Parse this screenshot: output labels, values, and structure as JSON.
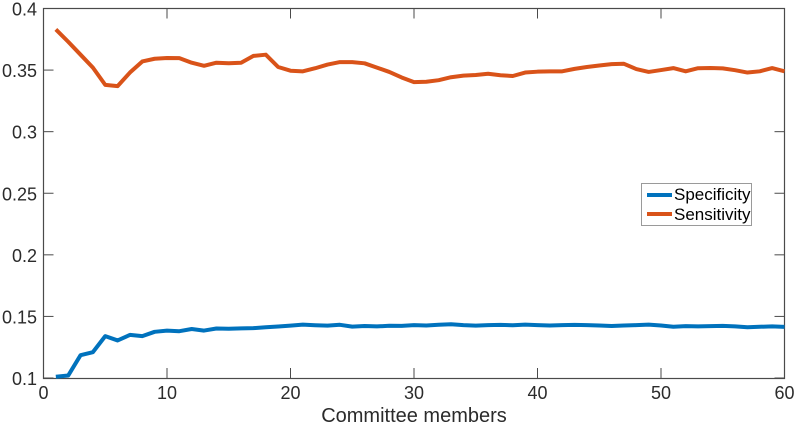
{
  "figure": {
    "background": "#ffffff",
    "axis_color": "#4a4a4a",
    "text_color": "#2b2b2b"
  },
  "chart_data": {
    "type": "line",
    "title": "",
    "xlabel": "Committee members",
    "ylabel": "",
    "xlim": [
      0,
      60
    ],
    "ylim": [
      0.1,
      0.4
    ],
    "xticks": [
      0,
      10,
      20,
      30,
      40,
      50,
      60
    ],
    "xtick_labels": [
      "0",
      "10",
      "20",
      "30",
      "40",
      "50",
      "60"
    ],
    "yticks": [
      0.1,
      0.15,
      0.2,
      0.25,
      0.3,
      0.35,
      0.4
    ],
    "ytick_labels": [
      "0.1",
      "0.15",
      "0.2",
      "0.25",
      "0.3",
      "0.35",
      "0.4"
    ],
    "grid": false,
    "box": true,
    "tick_direction": "in",
    "legend": {
      "position": "middle-right",
      "entries": [
        "Specificity",
        "Sensitivity"
      ]
    },
    "x": [
      1,
      2,
      3,
      4,
      5,
      6,
      7,
      8,
      9,
      10,
      11,
      12,
      13,
      14,
      15,
      16,
      17,
      18,
      19,
      20,
      21,
      22,
      23,
      24,
      25,
      26,
      27,
      28,
      29,
      30,
      31,
      32,
      33,
      34,
      35,
      36,
      37,
      38,
      39,
      40,
      41,
      42,
      43,
      44,
      45,
      46,
      47,
      48,
      49,
      50,
      51,
      52,
      53,
      54,
      55,
      56,
      57,
      58,
      59,
      60
    ],
    "series": [
      {
        "name": "Specificity",
        "color": "#0072BD",
        "values": [
          0.101,
          0.102,
          0.1185,
          0.121,
          0.134,
          0.1305,
          0.135,
          0.134,
          0.1375,
          0.1385,
          0.138,
          0.1398,
          0.1385,
          0.1402,
          0.14,
          0.1403,
          0.1405,
          0.1412,
          0.1418,
          0.1425,
          0.1433,
          0.1428,
          0.1425,
          0.1432,
          0.1417,
          0.1422,
          0.1419,
          0.1424,
          0.1423,
          0.1429,
          0.1426,
          0.1432,
          0.1436,
          0.1429,
          0.1425,
          0.1429,
          0.1431,
          0.1428,
          0.1433,
          0.1429,
          0.1426,
          0.1429,
          0.1431,
          0.1429,
          0.1426,
          0.1422,
          0.1426,
          0.1429,
          0.1433,
          0.1426,
          0.1416,
          0.1421,
          0.1419,
          0.1421,
          0.1423,
          0.1419,
          0.1412,
          0.1416,
          0.1419,
          0.1415
        ]
      },
      {
        "name": "Sensitivity",
        "color": "#D95319",
        "values": [
          0.383,
          0.373,
          0.3625,
          0.352,
          0.338,
          0.337,
          0.348,
          0.357,
          0.3592,
          0.3598,
          0.3597,
          0.356,
          0.3535,
          0.356,
          0.3555,
          0.356,
          0.3615,
          0.3625,
          0.3525,
          0.3495,
          0.349,
          0.3515,
          0.3545,
          0.3565,
          0.3565,
          0.3555,
          0.352,
          0.3485,
          0.344,
          0.3402,
          0.3405,
          0.3418,
          0.3442,
          0.3455,
          0.346,
          0.347,
          0.3458,
          0.3452,
          0.348,
          0.3487,
          0.349,
          0.349,
          0.351,
          0.3525,
          0.3537,
          0.3548,
          0.3551,
          0.3508,
          0.3485,
          0.35,
          0.3516,
          0.349,
          0.3515,
          0.3517,
          0.3514,
          0.3499,
          0.348,
          0.349,
          0.3516,
          0.349
        ]
      }
    ]
  }
}
